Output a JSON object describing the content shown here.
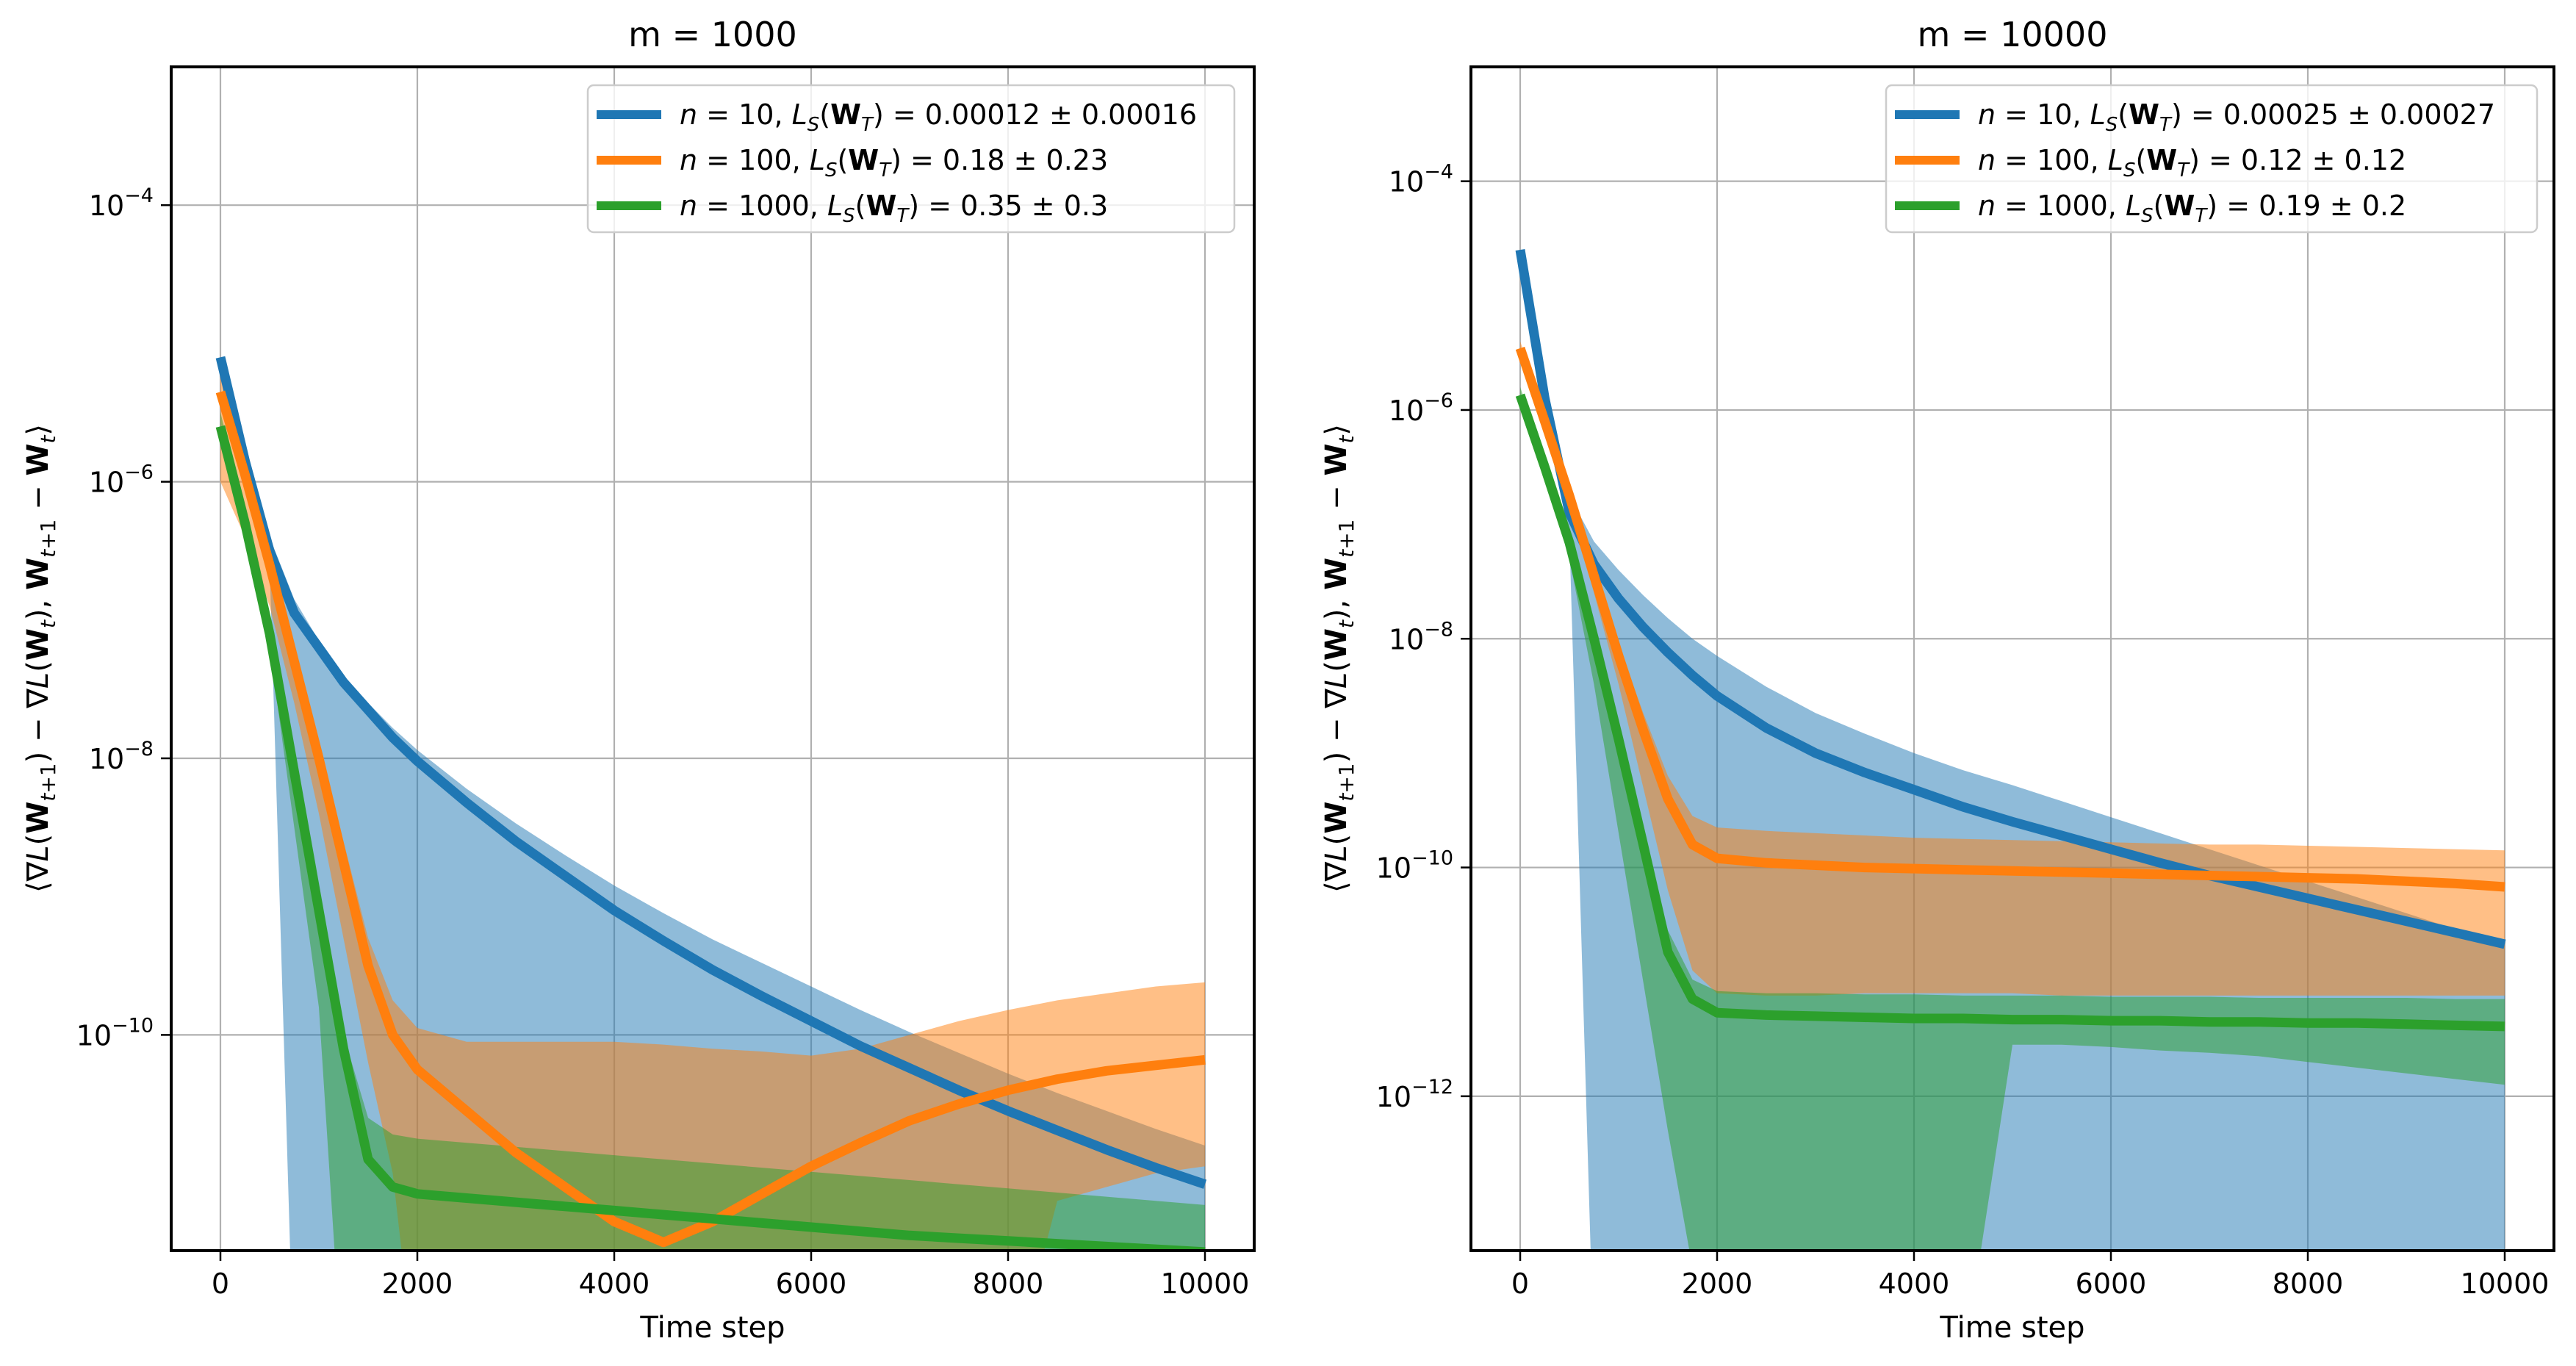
{
  "chart_data": [
    {
      "type": "line",
      "title": "m = 1000",
      "xlabel": "Time step",
      "ylabel": "⟨∇L(W_{t+1}) − ∇L(W_t), W_{t+1} − W_t⟩",
      "yscale": "log",
      "xlim": [
        -500,
        10500
      ],
      "ylim_log10": [
        -11.56,
        -3.0
      ],
      "x_ticks": [
        0,
        2000,
        4000,
        6000,
        8000,
        10000
      ],
      "x_tick_labels": [
        "0",
        "2000",
        "4000",
        "6000",
        "8000",
        "10000"
      ],
      "y_ticks_log10": [
        -4,
        -6,
        -8,
        -10
      ],
      "y_tick_labels": [
        {
          "base": "10",
          "exp": "−4"
        },
        {
          "base": "10",
          "exp": "−6"
        },
        {
          "base": "10",
          "exp": "−8"
        },
        {
          "base": "10",
          "exp": "−10"
        }
      ],
      "grid": true,
      "legend_position": "top-right",
      "x": [
        0,
        250,
        500,
        750,
        1000,
        1250,
        1500,
        1750,
        2000,
        2500,
        3000,
        3500,
        4000,
        4500,
        5000,
        5500,
        6000,
        6500,
        7000,
        7500,
        8000,
        8500,
        9000,
        9500,
        10000
      ],
      "series": [
        {
          "name": "n = 10",
          "legend": {
            "n": "10",
            "loss": "0.00012 ± 0.00016"
          },
          "color": "#1f77b4",
          "band_color": "#1f77b4",
          "mean_log10": [
            -5.1,
            -5.85,
            -6.5,
            -6.95,
            -7.2,
            -7.45,
            -7.65,
            -7.85,
            -8.02,
            -8.32,
            -8.6,
            -8.85,
            -9.1,
            -9.32,
            -9.53,
            -9.72,
            -9.9,
            -10.08,
            -10.24,
            -10.4,
            -10.55,
            -10.69,
            -10.83,
            -10.96,
            -11.08
          ],
          "upper_log10": [
            -5.1,
            -5.8,
            -6.4,
            -6.85,
            -7.15,
            -7.4,
            -7.6,
            -7.78,
            -7.94,
            -8.22,
            -8.47,
            -8.7,
            -8.92,
            -9.12,
            -9.31,
            -9.48,
            -9.65,
            -9.82,
            -9.98,
            -10.13,
            -10.28,
            -10.42,
            -10.55,
            -10.68,
            -10.8
          ],
          "lower_log10": [
            -5.1,
            -5.9,
            -6.6,
            -20,
            -20,
            -20,
            -20,
            -20,
            -20,
            -20,
            -20,
            -20,
            -20,
            -20,
            -20,
            -20,
            -20,
            -20,
            -20,
            -20,
            -20,
            -20,
            -20,
            -20,
            -20
          ]
        },
        {
          "name": "n = 100",
          "legend": {
            "n": "100",
            "loss": "0.18 ± 0.23"
          },
          "color": "#ff7f0e",
          "band_color": "#ff7f0e",
          "mean_log10": [
            -5.35,
            -5.95,
            -6.6,
            -7.3,
            -8.0,
            -8.75,
            -9.5,
            -10.0,
            -10.25,
            -10.55,
            -10.85,
            -11.1,
            -11.35,
            -11.5,
            -11.35,
            -11.15,
            -10.95,
            -10.78,
            -10.62,
            -10.5,
            -10.4,
            -10.32,
            -10.26,
            -10.22,
            -10.18
          ],
          "upper_log10": [
            -5.2,
            -5.85,
            -6.5,
            -7.2,
            -7.9,
            -8.6,
            -9.3,
            -9.75,
            -9.95,
            -10.05,
            -10.05,
            -10.05,
            -10.05,
            -10.07,
            -10.1,
            -10.12,
            -10.15,
            -10.1,
            -10.0,
            -9.9,
            -9.82,
            -9.75,
            -9.7,
            -9.65,
            -9.62
          ],
          "lower_log10": [
            -6.0,
            -6.4,
            -6.9,
            -7.6,
            -8.4,
            -9.3,
            -10.2,
            -11.0,
            -20,
            -20,
            -20,
            -20,
            -20,
            -20,
            -20,
            -20,
            -20,
            -20,
            -20,
            -20,
            -20,
            -11.2,
            -11.1,
            -11.0,
            -10.95
          ]
        },
        {
          "name": "n = 1000",
          "legend": {
            "n": "1000",
            "loss": "0.35 ± 0.3"
          },
          "color": "#2ca02c",
          "band_color": "#2ca02c",
          "mean_log10": [
            -5.6,
            -6.3,
            -7.1,
            -8.1,
            -9.1,
            -10.1,
            -10.9,
            -11.1,
            -11.15,
            -11.18,
            -11.21,
            -11.24,
            -11.27,
            -11.3,
            -11.33,
            -11.36,
            -11.39,
            -11.42,
            -11.45,
            -11.47,
            -11.49,
            -11.51,
            -11.53,
            -11.55,
            -11.57
          ],
          "upper_log10": [
            -5.5,
            -6.2,
            -7.0,
            -8.0,
            -9.0,
            -10.0,
            -10.6,
            -10.72,
            -10.75,
            -10.78,
            -10.81,
            -10.84,
            -10.87,
            -10.9,
            -10.93,
            -10.96,
            -10.99,
            -11.02,
            -11.05,
            -11.08,
            -11.11,
            -11.14,
            -11.17,
            -11.2,
            -11.23
          ],
          "lower_log10": [
            -5.7,
            -6.4,
            -7.2,
            -8.5,
            -9.8,
            -20,
            -20,
            -20,
            -20,
            -20,
            -20,
            -20,
            -20,
            -20,
            -20,
            -20,
            -20,
            -20,
            -20,
            -20,
            -20,
            -20,
            -20,
            -20,
            -20
          ]
        }
      ]
    },
    {
      "type": "line",
      "title": "m = 10000",
      "xlabel": "Time step",
      "ylabel": "⟨∇L(W_{t+1}) − ∇L(W_t), W_{t+1} − W_t⟩",
      "yscale": "log",
      "xlim": [
        -500,
        10500
      ],
      "ylim_log10": [
        -13.35,
        -3.0
      ],
      "x_ticks": [
        0,
        2000,
        4000,
        6000,
        8000,
        10000
      ],
      "x_tick_labels": [
        "0",
        "2000",
        "4000",
        "6000",
        "8000",
        "10000"
      ],
      "y_ticks_log10": [
        -4,
        -6,
        -8,
        -10,
        -12
      ],
      "y_tick_labels": [
        {
          "base": "10",
          "exp": "−4"
        },
        {
          "base": "10",
          "exp": "−6"
        },
        {
          "base": "10",
          "exp": "−8"
        },
        {
          "base": "10",
          "exp": "−10"
        },
        {
          "base": "10",
          "exp": "−12"
        }
      ],
      "grid": true,
      "legend_position": "top-right",
      "x": [
        0,
        250,
        500,
        750,
        1000,
        1250,
        1500,
        1750,
        2000,
        2500,
        3000,
        3500,
        4000,
        4500,
        5000,
        5500,
        6000,
        6500,
        7000,
        7500,
        8000,
        8500,
        9000,
        9500,
        10000
      ],
      "series": [
        {
          "name": "n = 10",
          "legend": {
            "n": "10",
            "loss": "0.00025 ± 0.00027"
          },
          "color": "#1f77b4",
          "band_color": "#1f77b4",
          "mean_log10": [
            -4.6,
            -5.9,
            -6.9,
            -7.35,
            -7.65,
            -7.9,
            -8.12,
            -8.32,
            -8.5,
            -8.78,
            -9.0,
            -9.17,
            -9.32,
            -9.47,
            -9.6,
            -9.72,
            -9.84,
            -9.96,
            -10.07,
            -10.17,
            -10.27,
            -10.37,
            -10.47,
            -10.57,
            -10.67
          ],
          "upper_log10": [
            -4.6,
            -5.8,
            -6.75,
            -7.15,
            -7.4,
            -7.62,
            -7.82,
            -8.0,
            -8.15,
            -8.42,
            -8.65,
            -8.83,
            -9.0,
            -9.15,
            -9.28,
            -9.42,
            -9.56,
            -9.7,
            -9.84,
            -9.98,
            -10.12,
            -10.26,
            -10.4,
            -10.54,
            -10.68
          ],
          "lower_log10": [
            -4.6,
            -6.0,
            -7.1,
            -20,
            -20,
            -20,
            -20,
            -20,
            -20,
            -20,
            -20,
            -20,
            -20,
            -20,
            -20,
            -20,
            -20,
            -20,
            -20,
            -20,
            -20,
            -20,
            -20,
            -20,
            -20
          ]
        },
        {
          "name": "n = 100",
          "legend": {
            "n": "100",
            "loss": "0.12 ± 0.12"
          },
          "color": "#ff7f0e",
          "band_color": "#ff7f0e",
          "mean_log10": [
            -5.46,
            -6.1,
            -6.75,
            -7.45,
            -8.15,
            -8.8,
            -9.4,
            -9.8,
            -9.92,
            -9.96,
            -9.98,
            -10.0,
            -10.01,
            -10.02,
            -10.03,
            -10.04,
            -10.05,
            -10.06,
            -10.07,
            -10.08,
            -10.09,
            -10.1,
            -10.12,
            -10.14,
            -10.17
          ],
          "upper_log10": [
            -5.4,
            -6.0,
            -6.65,
            -7.35,
            -8.05,
            -8.65,
            -9.2,
            -9.55,
            -9.65,
            -9.68,
            -9.7,
            -9.72,
            -9.74,
            -9.75,
            -9.76,
            -9.77,
            -9.78,
            -9.79,
            -9.8,
            -9.8,
            -9.81,
            -9.82,
            -9.83,
            -9.84,
            -9.85
          ],
          "lower_log10": [
            -5.5,
            -6.2,
            -6.85,
            -7.6,
            -8.4,
            -9.3,
            -10.2,
            -10.9,
            -11.1,
            -11.12,
            -11.12,
            -11.1,
            -11.1,
            -11.1,
            -11.1,
            -11.12,
            -11.12,
            -11.12,
            -11.12,
            -11.12,
            -11.12,
            -11.12,
            -11.12,
            -11.12,
            -11.12
          ]
        },
        {
          "name": "n = 1000",
          "legend": {
            "n": "1000",
            "loss": "0.19 ± 0.2"
          },
          "color": "#2ca02c",
          "band_color": "#2ca02c",
          "mean_log10": [
            -5.87,
            -6.5,
            -7.16,
            -8.0,
            -8.88,
            -9.8,
            -10.74,
            -11.15,
            -11.27,
            -11.29,
            -11.3,
            -11.31,
            -11.32,
            -11.32,
            -11.33,
            -11.33,
            -11.34,
            -11.34,
            -11.35,
            -11.35,
            -11.36,
            -11.36,
            -11.37,
            -11.38,
            -11.39
          ],
          "upper_log10": [
            -5.8,
            -6.42,
            -7.08,
            -7.9,
            -8.78,
            -9.7,
            -10.55,
            -10.98,
            -11.08,
            -11.1,
            -11.1,
            -11.11,
            -11.11,
            -11.12,
            -11.12,
            -11.12,
            -11.13,
            -11.13,
            -11.13,
            -11.14,
            -11.14,
            -11.14,
            -11.14,
            -11.15,
            -11.15
          ],
          "lower_log10": [
            -5.95,
            -6.6,
            -7.3,
            -8.4,
            -9.7,
            -11.0,
            -12.3,
            -13.5,
            -20,
            -20,
            -20,
            -20,
            -20,
            -20,
            -11.55,
            -11.55,
            -11.57,
            -11.6,
            -11.62,
            -11.65,
            -11.7,
            -11.75,
            -11.8,
            -11.85,
            -11.9
          ]
        }
      ]
    }
  ]
}
